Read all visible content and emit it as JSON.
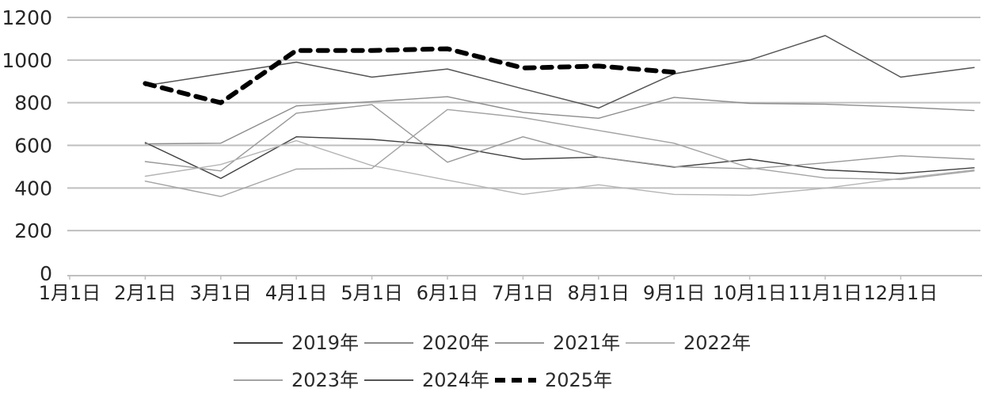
{
  "chart_data": {
    "type": "line",
    "title": "",
    "xlabel": "",
    "ylabel": "",
    "grid": true,
    "legend_position": "bottom",
    "ylim": [
      0,
      1200
    ],
    "yticks": [
      0,
      200,
      400,
      600,
      800,
      1000,
      1200
    ],
    "x_categories": [
      "1月1日",
      "2月1日",
      "3月1日",
      "4月1日",
      "5月1日",
      "6月1日",
      "7月1日",
      "8月1日",
      "9月1日",
      "10月1日",
      "11月1日",
      "12月1日"
    ],
    "note": "all series start at 2月1日; thin yearly series extend slightly past 12月1日 to year-end at the plot right edge; 2025年 is a thick black dashed line ending at 9月1日",
    "series": [
      {
        "name": "2019年",
        "color": "#404040",
        "width": 1.4,
        "dash": null,
        "start_index": 1,
        "extends_to_edge": true,
        "values": [
          613,
          445,
          640,
          628,
          598,
          535,
          545,
          498,
          535,
          485,
          468,
          495
        ]
      },
      {
        "name": "2020年",
        "color": "#8c8c8c",
        "width": 1.4,
        "dash": null,
        "start_index": 1,
        "extends_to_edge": true,
        "values": [
          607,
          610,
          785,
          805,
          828,
          755,
          727,
          825,
          797,
          793,
          780,
          763
        ]
      },
      {
        "name": "2021年",
        "color": "#999999",
        "width": 1.4,
        "dash": null,
        "start_index": 1,
        "extends_to_edge": true,
        "values": [
          524,
          480,
          751,
          791,
          521,
          640,
          545,
          500,
          490,
          518,
          551,
          535
        ]
      },
      {
        "name": "2022年",
        "color": "#b5b5b5",
        "width": 1.4,
        "dash": null,
        "start_index": 1,
        "extends_to_edge": true,
        "values": [
          455,
          510,
          622,
          505,
          437,
          370,
          415,
          370,
          366,
          399,
          445,
          485
        ]
      },
      {
        "name": "2023年",
        "color": "#a3a3a3",
        "width": 1.4,
        "dash": null,
        "start_index": 1,
        "extends_to_edge": true,
        "values": [
          432,
          360,
          489,
          492,
          768,
          730,
          670,
          610,
          495,
          447,
          440,
          480
        ]
      },
      {
        "name": "2024年",
        "color": "#555555",
        "width": 1.5,
        "dash": null,
        "start_index": 1,
        "extends_to_edge": true,
        "values": [
          880,
          935,
          990,
          920,
          958,
          865,
          775,
          935,
          1000,
          1115,
          920,
          965
        ]
      },
      {
        "name": "2025年",
        "color": "#000000",
        "width": 6,
        "dash": "12 10",
        "start_index": 1,
        "extends_to_edge": false,
        "values": [
          890,
          800,
          1045,
          1045,
          1053,
          963,
          972,
          943
        ]
      }
    ],
    "axis_colors": {
      "gridline": "#bfbfbf",
      "axis_line": "#bfbfbf",
      "tick": "#bfbfbf",
      "label": "#262626"
    }
  },
  "legend": {
    "rows": [
      [
        {
          "label": "2019年"
        },
        {
          "label": "2020年"
        },
        {
          "label": "2021年"
        },
        {
          "label": "2022年"
        }
      ],
      [
        {
          "label": "2023年"
        },
        {
          "label": "2024年"
        },
        {
          "label": "2025年"
        }
      ]
    ]
  }
}
